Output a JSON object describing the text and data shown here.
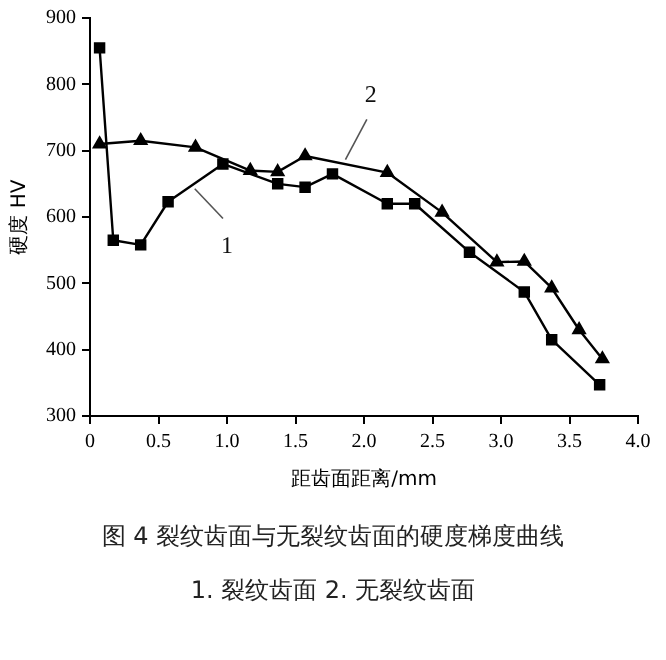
{
  "chart_data": {
    "type": "line",
    "xlabel": "距齿面距离/mm",
    "ylabel": "硬度 HV",
    "xlim": [
      0,
      4
    ],
    "xticks": [
      0,
      0.5,
      {
        "value": 1,
        "label": "1.0"
      },
      1.5,
      {
        "value": 2,
        "label": "2.0"
      },
      2.5,
      {
        "value": 3,
        "label": "3.0"
      },
      3.5,
      {
        "value": 4,
        "label": "4.0"
      }
    ],
    "ylim": [
      300,
      900
    ],
    "yticks": [
      300,
      400,
      500,
      600,
      700,
      800,
      900
    ],
    "grid": false,
    "legend": false,
    "series": [
      {
        "name": "1",
        "color": "#000000",
        "marker": "square",
        "x": [
          0.07,
          0.17,
          0.37,
          0.57,
          0.97,
          1.37,
          1.57,
          1.77,
          2.17,
          2.37,
          2.77,
          3.17,
          3.37,
          3.72
        ],
        "values": [
          855,
          565,
          558,
          623,
          680,
          650,
          645,
          665,
          620,
          620,
          547,
          487,
          415,
          347
        ]
      },
      {
        "name": "2",
        "color": "#000000",
        "marker": "triangle",
        "x": [
          0.07,
          0.37,
          0.77,
          1.17,
          1.37,
          1.57,
          2.17,
          2.57,
          2.97,
          3.17,
          3.37,
          3.57,
          3.74
        ],
        "values": [
          710,
          715,
          705,
          670,
          668,
          692,
          667,
          607,
          532,
          533,
          493,
          430,
          386
        ]
      }
    ],
    "annotations": [
      "图 4 裂纹齿面与无裂纹齿面的硬度梯度曲线",
      "1. 裂纹齿面 2. 无裂纹齿面"
    ]
  }
}
